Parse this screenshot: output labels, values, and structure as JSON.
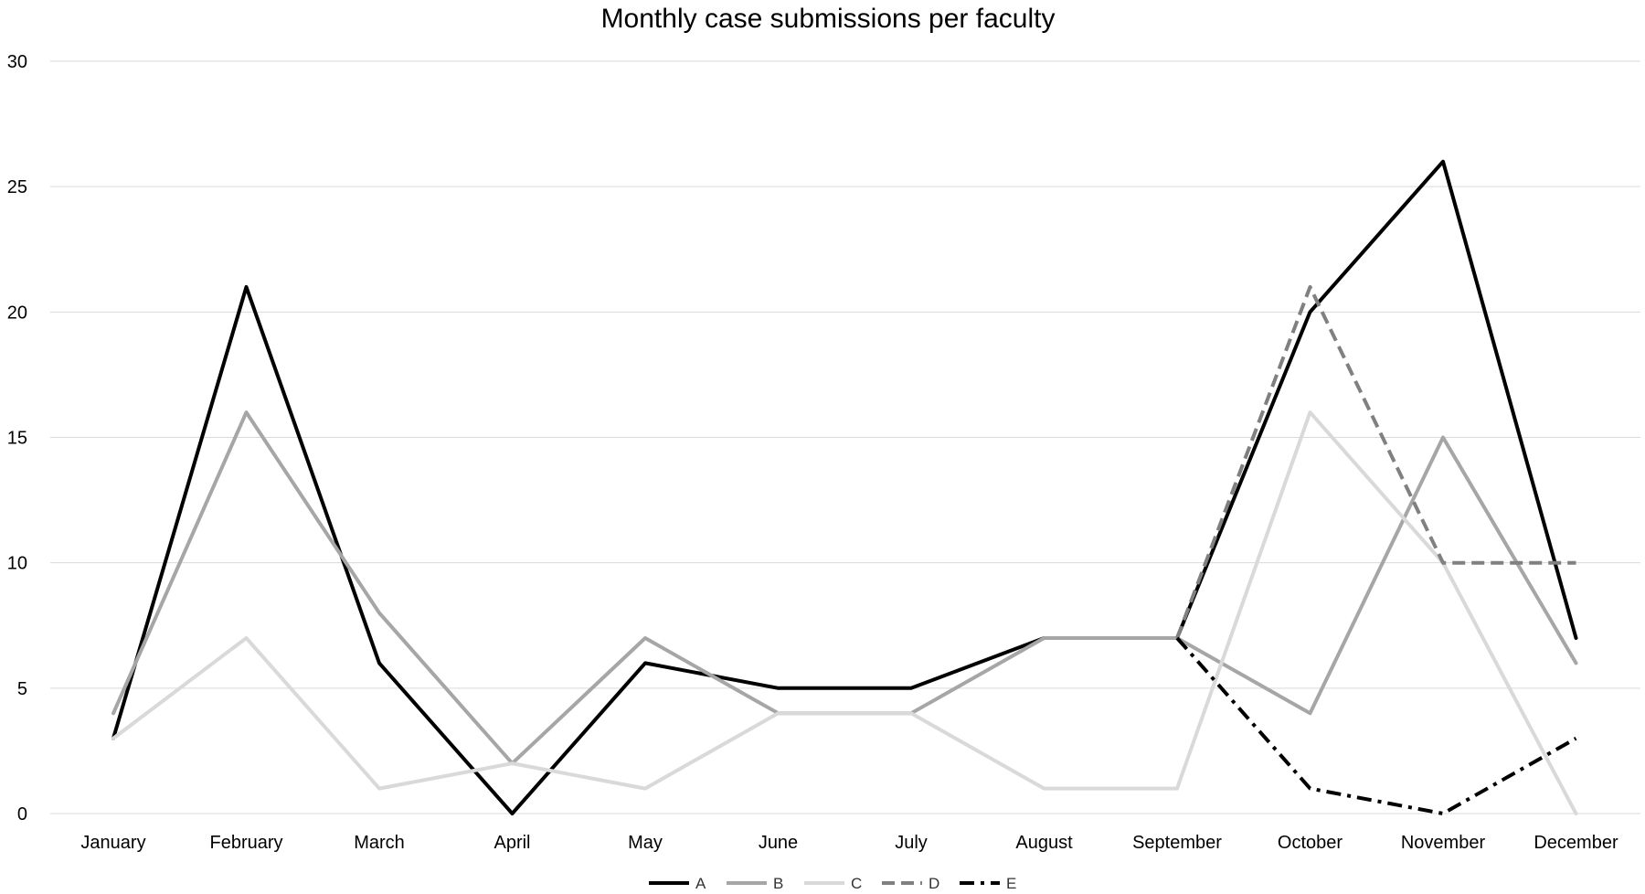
{
  "chart_data": {
    "type": "line",
    "title": "Monthly case submissions per faculty",
    "xlabel": "",
    "ylabel": "",
    "ylim": [
      0,
      30
    ],
    "yticks": [
      0,
      5,
      10,
      15,
      20,
      25,
      30
    ],
    "grid": true,
    "legend_position": "bottom",
    "categories": [
      "January",
      "February",
      "March",
      "April",
      "May",
      "June",
      "July",
      "August",
      "September",
      "October",
      "November",
      "December"
    ],
    "series": [
      {
        "name": "A",
        "color": "#000000",
        "dash": "solid",
        "values": [
          3,
          21,
          6,
          0,
          6,
          5,
          5,
          7,
          7,
          20,
          26,
          7
        ]
      },
      {
        "name": "B",
        "color": "#a6a6a6",
        "dash": "solid",
        "values": [
          4,
          16,
          8,
          2,
          7,
          4,
          4,
          7,
          7,
          4,
          15,
          6
        ]
      },
      {
        "name": "C",
        "color": "#d9d9d9",
        "dash": "solid",
        "values": [
          3,
          7,
          1,
          2,
          1,
          4,
          4,
          1,
          1,
          16,
          10,
          0
        ]
      },
      {
        "name": "D",
        "color": "#808080",
        "dash": "dashed",
        "values": [
          null,
          null,
          null,
          null,
          null,
          null,
          null,
          null,
          7,
          21,
          10,
          10
        ]
      },
      {
        "name": "E",
        "color": "#000000",
        "dash": "dashdot",
        "values": [
          null,
          null,
          null,
          null,
          null,
          null,
          null,
          null,
          7,
          1,
          0,
          3
        ]
      }
    ]
  }
}
